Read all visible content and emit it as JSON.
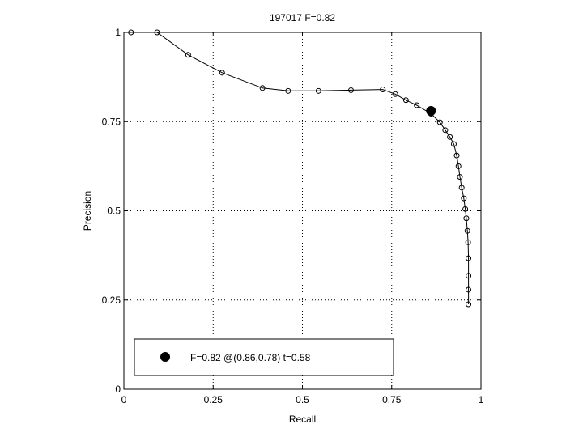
{
  "chart_data": {
    "type": "line",
    "title": "197017 F=0.82",
    "xlabel": "Recall",
    "ylabel": "Precision",
    "xlim": [
      0,
      1
    ],
    "ylim": [
      0,
      1
    ],
    "xticks": [
      0,
      0.25,
      0.5,
      0.75,
      1
    ],
    "xtick_labels": [
      "0",
      "0.25",
      "0.5",
      "0.75",
      "1"
    ],
    "yticks": [
      0,
      0.25,
      0.5,
      0.75,
      1
    ],
    "ytick_labels": [
      "0",
      "0.25",
      "0.5",
      "0.75",
      "1"
    ],
    "grid": true,
    "legend_position": "bottom-left",
    "series": [
      {
        "marker": "open-circle",
        "x": [
          0.02,
          0.093,
          0.18,
          0.275,
          0.388,
          0.46,
          0.545,
          0.636,
          0.725,
          0.76,
          0.79,
          0.82,
          0.86,
          0.885,
          0.9,
          0.913,
          0.924,
          0.932,
          0.937,
          0.941,
          0.946,
          0.952,
          0.956,
          0.959,
          0.962,
          0.964,
          0.965,
          0.965,
          0.965,
          0.965
        ],
        "y": [
          1.0,
          1.0,
          0.937,
          0.887,
          0.844,
          0.836,
          0.836,
          0.838,
          0.84,
          0.827,
          0.81,
          0.796,
          0.772,
          0.748,
          0.726,
          0.707,
          0.687,
          0.655,
          0.625,
          0.595,
          0.565,
          0.535,
          0.505,
          0.479,
          0.444,
          0.412,
          0.367,
          0.318,
          0.279,
          0.238
        ]
      }
    ],
    "best_point": {
      "x": 0.86,
      "y": 0.78
    },
    "legend": "F=0.82 @(0.86,0.78) t=0.58"
  }
}
